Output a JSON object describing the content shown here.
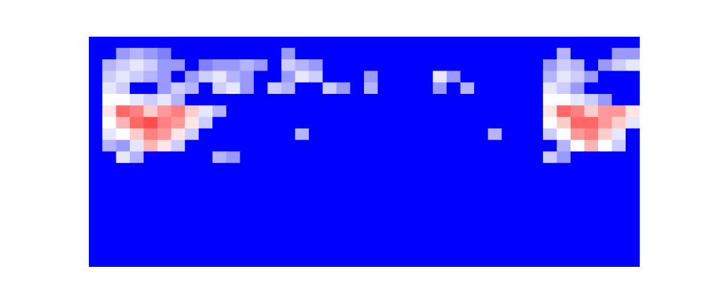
{
  "chart_data": {
    "type": "heatmap",
    "xlim": [
      0,
      40
    ],
    "ylim": [
      0,
      20
    ],
    "tick_labels": false,
    "color_range": [
      0,
      1
    ],
    "cells": [
      [
        0,
        0,
        0,
        0,
        0,
        0,
        0,
        0,
        0,
        0,
        0,
        0,
        0,
        0,
        0,
        0,
        0,
        0,
        0,
        0,
        0,
        0,
        0,
        0,
        0,
        0,
        0,
        0,
        0,
        0,
        0,
        0,
        0,
        0,
        0,
        0,
        0,
        0,
        0,
        0
      ],
      [
        0,
        0,
        0.3,
        0.35,
        0.3,
        0.25,
        0,
        0,
        0,
        0,
        0,
        0,
        0,
        0,
        0.3,
        0,
        0,
        0,
        0,
        0,
        0,
        0,
        0,
        0,
        0,
        0,
        0,
        0,
        0,
        0,
        0,
        0,
        0,
        0,
        0.35,
        0,
        0,
        0,
        0.3,
        0.3
      ],
      [
        0,
        0.35,
        0.4,
        0.45,
        0.4,
        0.3,
        0.3,
        0,
        0.25,
        0.3,
        0.3,
        0.35,
        0.3,
        0,
        0.4,
        0.35,
        0.3,
        0,
        0,
        0,
        0,
        0,
        0,
        0,
        0,
        0,
        0,
        0,
        0,
        0,
        0,
        0,
        0,
        0.3,
        0.4,
        0.35,
        0,
        0.3,
        0.4,
        0.45
      ],
      [
        0,
        0.4,
        0.45,
        0.4,
        0.35,
        0.3,
        0,
        0.3,
        0.4,
        0.45,
        0.35,
        0.3,
        0,
        0,
        0.3,
        0.45,
        0.4,
        0,
        0,
        0,
        0.3,
        0,
        0,
        0,
        0,
        0.45,
        0.3,
        0,
        0,
        0,
        0,
        0,
        0,
        0.35,
        0.45,
        0.4,
        0.3,
        0,
        0,
        0
      ],
      [
        0,
        0.45,
        0.4,
        0,
        0,
        0.3,
        0.4,
        0.35,
        0,
        0.4,
        0.45,
        0.3,
        0,
        0.4,
        0.35,
        0,
        0,
        0.4,
        0.3,
        0,
        0.35,
        0,
        0,
        0,
        0,
        0.3,
        0,
        0.35,
        0,
        0,
        0,
        0,
        0,
        0.45,
        0.4,
        0.3,
        0,
        0,
        0,
        0
      ],
      [
        0,
        0.5,
        0.5,
        0.45,
        0.4,
        0.45,
        0.35,
        0,
        0,
        0,
        0,
        0,
        0,
        0,
        0,
        0,
        0,
        0,
        0,
        0,
        0,
        0,
        0,
        0,
        0,
        0,
        0,
        0,
        0,
        0,
        0,
        0,
        0,
        0.5,
        0.5,
        0.45,
        0.4,
        0.3,
        0,
        0
      ],
      [
        0,
        0.55,
        0.8,
        0.75,
        0.6,
        0.7,
        0.75,
        0.6,
        0.45,
        0.35,
        0,
        0,
        0,
        0,
        0,
        0,
        0,
        0,
        0,
        0,
        0,
        0,
        0,
        0,
        0,
        0,
        0,
        0,
        0,
        0,
        0,
        0,
        0,
        0.55,
        0.8,
        0.75,
        0.6,
        0.7,
        0.7,
        0.55
      ],
      [
        0,
        0.5,
        0.65,
        0.8,
        0.85,
        0.75,
        0.7,
        0.55,
        0.4,
        0,
        0,
        0,
        0,
        0,
        0,
        0,
        0,
        0,
        0,
        0,
        0,
        0,
        0,
        0,
        0,
        0,
        0,
        0,
        0,
        0,
        0,
        0,
        0,
        0.5,
        0.6,
        0.8,
        0.8,
        0.7,
        0.6,
        0.45
      ],
      [
        0,
        0.45,
        0.5,
        0.6,
        0.75,
        0.7,
        0.55,
        0.4,
        0,
        0,
        0,
        0,
        0,
        0,
        0,
        0.35,
        0,
        0,
        0,
        0,
        0,
        0,
        0,
        0,
        0,
        0,
        0,
        0,
        0,
        0.35,
        0,
        0,
        0,
        0.4,
        0.5,
        0.7,
        0.75,
        0.6,
        0.45,
        0
      ],
      [
        0,
        0.35,
        0.3,
        0.45,
        0.65,
        0.55,
        0.4,
        0,
        0,
        0,
        0,
        0,
        0,
        0,
        0,
        0,
        0,
        0,
        0,
        0,
        0,
        0,
        0,
        0,
        0,
        0,
        0,
        0,
        0,
        0,
        0,
        0,
        0,
        0,
        0.35,
        0.5,
        0.65,
        0.5,
        0.4,
        0
      ],
      [
        0,
        0,
        0.45,
        0.35,
        0,
        0,
        0,
        0,
        0,
        0.35,
        0.3,
        0,
        0,
        0,
        0,
        0,
        0,
        0,
        0,
        0,
        0,
        0,
        0,
        0,
        0,
        0,
        0,
        0,
        0,
        0,
        0,
        0,
        0,
        0.4,
        0.3,
        0,
        0,
        0,
        0,
        0
      ],
      [
        0,
        0,
        0,
        0,
        0,
        0,
        0,
        0,
        0,
        0,
        0,
        0,
        0,
        0,
        0,
        0,
        0,
        0,
        0,
        0,
        0,
        0,
        0,
        0,
        0,
        0,
        0,
        0,
        0,
        0,
        0,
        0,
        0,
        0,
        0,
        0,
        0,
        0,
        0,
        0
      ],
      [
        0,
        0,
        0,
        0,
        0,
        0,
        0,
        0,
        0,
        0,
        0,
        0,
        0,
        0,
        0,
        0,
        0,
        0,
        0,
        0,
        0,
        0,
        0,
        0,
        0,
        0,
        0,
        0,
        0,
        0,
        0,
        0,
        0,
        0,
        0,
        0,
        0,
        0,
        0,
        0
      ],
      [
        0,
        0,
        0,
        0,
        0,
        0,
        0,
        0,
        0,
        0,
        0,
        0,
        0,
        0,
        0,
        0,
        0,
        0,
        0,
        0,
        0,
        0,
        0,
        0,
        0,
        0,
        0,
        0,
        0,
        0,
        0,
        0,
        0,
        0,
        0,
        0,
        0,
        0,
        0,
        0
      ],
      [
        0,
        0,
        0,
        0,
        0,
        0,
        0,
        0,
        0,
        0,
        0,
        0,
        0,
        0,
        0,
        0,
        0,
        0,
        0,
        0,
        0,
        0,
        0,
        0,
        0,
        0,
        0,
        0,
        0,
        0,
        0,
        0,
        0,
        0,
        0,
        0,
        0,
        0,
        0,
        0
      ],
      [
        0,
        0,
        0,
        0,
        0,
        0,
        0,
        0,
        0,
        0,
        0,
        0,
        0,
        0,
        0,
        0,
        0,
        0,
        0,
        0,
        0,
        0,
        0,
        0,
        0,
        0,
        0,
        0,
        0,
        0,
        0,
        0,
        0,
        0,
        0,
        0,
        0,
        0,
        0,
        0
      ],
      [
        0,
        0,
        0,
        0,
        0,
        0,
        0,
        0,
        0,
        0,
        0,
        0,
        0,
        0,
        0,
        0,
        0,
        0,
        0,
        0,
        0,
        0,
        0,
        0,
        0,
        0,
        0,
        0,
        0,
        0,
        0,
        0,
        0,
        0,
        0,
        0,
        0,
        0,
        0,
        0
      ],
      [
        0,
        0,
        0,
        0,
        0,
        0,
        0,
        0,
        0,
        0,
        0,
        0,
        0,
        0,
        0,
        0,
        0,
        0,
        0,
        0,
        0,
        0,
        0,
        0,
        0,
        0,
        0,
        0,
        0,
        0,
        0,
        0,
        0,
        0,
        0,
        0,
        0,
        0,
        0,
        0
      ],
      [
        0,
        0,
        0,
        0,
        0,
        0,
        0,
        0,
        0,
        0,
        0,
        0,
        0,
        0,
        0,
        0,
        0,
        0,
        0,
        0,
        0,
        0,
        0,
        0,
        0,
        0,
        0,
        0,
        0,
        0,
        0,
        0,
        0,
        0,
        0,
        0,
        0,
        0,
        0,
        0
      ],
      [
        0,
        0,
        0,
        0,
        0,
        0,
        0,
        0,
        0,
        0,
        0,
        0,
        0,
        0,
        0,
        0,
        0,
        0,
        0,
        0,
        0,
        0,
        0,
        0,
        0,
        0,
        0,
        0,
        0,
        0,
        0,
        0,
        0,
        0,
        0,
        0,
        0,
        0,
        0,
        0
      ]
    ]
  }
}
